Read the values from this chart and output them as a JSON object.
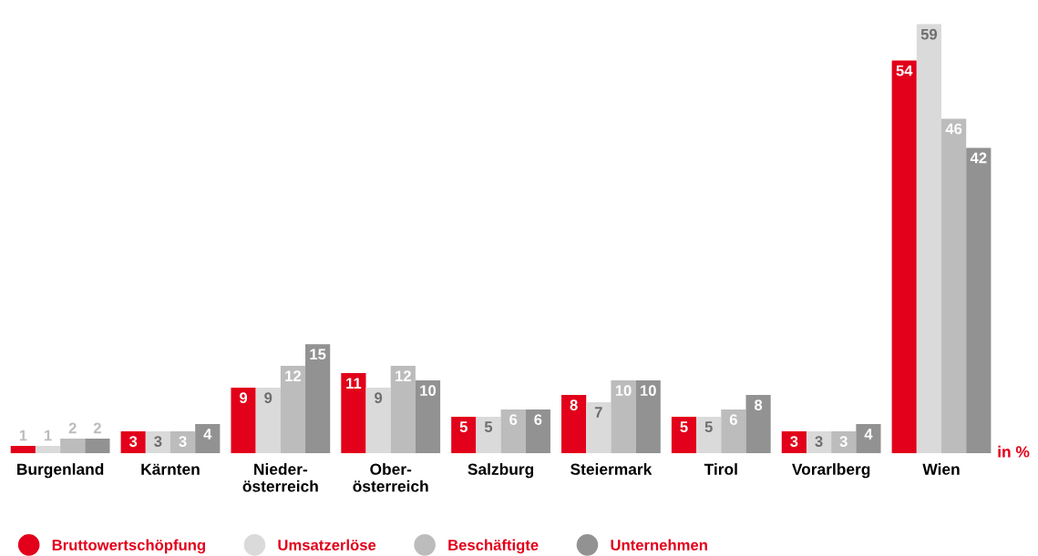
{
  "chart_data": {
    "type": "bar",
    "categories": [
      "Burgenland",
      "Kärnten",
      "Nieder-\nösterreich",
      "Ober-\nösterreich",
      "Salzburg",
      "Steiermark",
      "Tirol",
      "Vorarlberg",
      "Wien"
    ],
    "series": [
      {
        "name": "Bruttowertschöpfung",
        "color": "#e2001a",
        "values": [
          1,
          3,
          9,
          11,
          5,
          8,
          5,
          3,
          54
        ]
      },
      {
        "name": "Umsatzerlöse",
        "color": "#dadadb",
        "values": [
          1,
          3,
          9,
          9,
          5,
          7,
          5,
          3,
          59
        ]
      },
      {
        "name": "Beschäftigte",
        "color": "#bcbcbd",
        "values": [
          2,
          3,
          12,
          12,
          6,
          10,
          6,
          3,
          46
        ]
      },
      {
        "name": "Unternehmen",
        "color": "#929293",
        "values": [
          2,
          4,
          15,
          10,
          6,
          10,
          8,
          4,
          42
        ]
      }
    ],
    "data_labels": true,
    "legend": "bottom",
    "grid": false,
    "annotations": [
      "in %"
    ]
  }
}
